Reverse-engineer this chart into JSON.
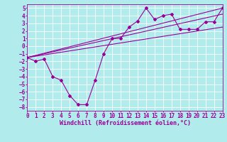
{
  "background_color": "#b2ebeb",
  "line_color": "#990099",
  "grid_color": "#ffffff",
  "xlabel": "Windchill (Refroidissement éolien,°C)",
  "xlim": [
    0,
    23
  ],
  "ylim": [
    -8.5,
    5.5
  ],
  "xticks": [
    0,
    1,
    2,
    3,
    4,
    5,
    6,
    7,
    8,
    9,
    10,
    11,
    12,
    13,
    14,
    15,
    16,
    17,
    18,
    19,
    20,
    21,
    22,
    23
  ],
  "yticks": [
    -8,
    -7,
    -6,
    -5,
    -4,
    -3,
    -2,
    -1,
    0,
    1,
    2,
    3,
    4,
    5
  ],
  "series1_x": [
    0,
    1,
    2,
    3,
    4,
    5,
    6,
    7,
    8,
    9,
    10,
    11,
    12,
    13,
    14,
    15,
    16,
    17,
    18,
    19,
    20,
    21,
    22,
    23
  ],
  "series1_y": [
    -1.5,
    -2,
    -1.7,
    -4,
    -4.5,
    -6.5,
    -7.7,
    -7.7,
    -4.5,
    -1,
    1,
    1,
    2.5,
    3.3,
    5,
    3.5,
    4,
    4.2,
    2.2,
    2.2,
    2.2,
    3.2,
    3.2,
    5
  ],
  "series2_x": [
    0,
    23
  ],
  "series2_y": [
    -1.5,
    5
  ],
  "series3_x": [
    0,
    23
  ],
  "series3_y": [
    -1.5,
    4.2
  ],
  "series4_x": [
    0,
    23
  ],
  "series4_y": [
    -1.5,
    2.5
  ],
  "xlabel_fontsize": 6,
  "tick_fontsize": 5.5,
  "xlabel_fontweight": "bold"
}
